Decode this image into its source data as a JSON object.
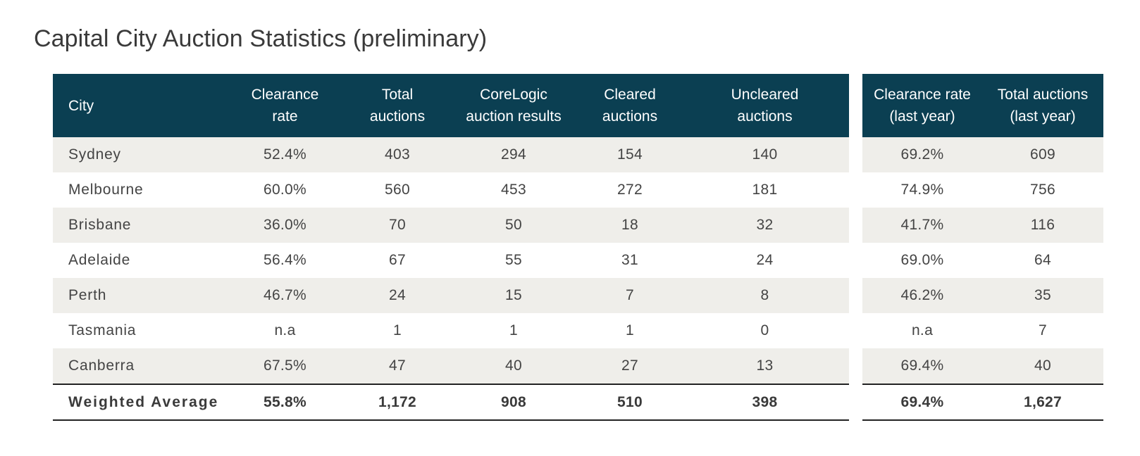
{
  "title": "Capital City Auction Statistics (preliminary)",
  "main_headers": {
    "city": "City",
    "clearance_rate": [
      "Clearance",
      "rate"
    ],
    "total_auctions": [
      "Total",
      "auctions"
    ],
    "corelogic_results": [
      "CoreLogic",
      "auction results"
    ],
    "cleared": [
      "Cleared",
      "auctions"
    ],
    "uncleared": [
      "Uncleared",
      "auctions"
    ]
  },
  "last_year_headers": {
    "clearance_rate": [
      "Clearance rate",
      "(last year)"
    ],
    "total_auctions": [
      "Total auctions",
      "(last year)"
    ]
  },
  "rows": [
    {
      "city": "Sydney",
      "clearance_rate": "52.4%",
      "total_auctions": "403",
      "corelogic_results": "294",
      "cleared": "154",
      "uncleared": "140",
      "ly_clearance_rate": "69.2%",
      "ly_total_auctions": "609"
    },
    {
      "city": "Melbourne",
      "clearance_rate": "60.0%",
      "total_auctions": "560",
      "corelogic_results": "453",
      "cleared": "272",
      "uncleared": "181",
      "ly_clearance_rate": "74.9%",
      "ly_total_auctions": "756"
    },
    {
      "city": "Brisbane",
      "clearance_rate": "36.0%",
      "total_auctions": "70",
      "corelogic_results": "50",
      "cleared": "18",
      "uncleared": "32",
      "ly_clearance_rate": "41.7%",
      "ly_total_auctions": "116"
    },
    {
      "city": "Adelaide",
      "clearance_rate": "56.4%",
      "total_auctions": "67",
      "corelogic_results": "55",
      "cleared": "31",
      "uncleared": "24",
      "ly_clearance_rate": "69.0%",
      "ly_total_auctions": "64"
    },
    {
      "city": "Perth",
      "clearance_rate": "46.7%",
      "total_auctions": "24",
      "corelogic_results": "15",
      "cleared": "7",
      "uncleared": "8",
      "ly_clearance_rate": "46.2%",
      "ly_total_auctions": "35"
    },
    {
      "city": "Tasmania",
      "clearance_rate": "n.a",
      "total_auctions": "1",
      "corelogic_results": "1",
      "cleared": "1",
      "uncleared": "0",
      "ly_clearance_rate": "n.a",
      "ly_total_auctions": "7"
    },
    {
      "city": "Canberra",
      "clearance_rate": "67.5%",
      "total_auctions": "47",
      "corelogic_results": "40",
      "cleared": "27",
      "uncleared": "13",
      "ly_clearance_rate": "69.4%",
      "ly_total_auctions": "40"
    }
  ],
  "total": {
    "city": "Weighted Average",
    "clearance_rate": "55.8%",
    "total_auctions": "1,172",
    "corelogic_results": "908",
    "cleared": "510",
    "uncleared": "398",
    "ly_clearance_rate": "69.4%",
    "ly_total_auctions": "1,627"
  },
  "colors": {
    "header_bg": "#0b3f52",
    "row_shade": "#efeeea",
    "rule": "#222222"
  }
}
